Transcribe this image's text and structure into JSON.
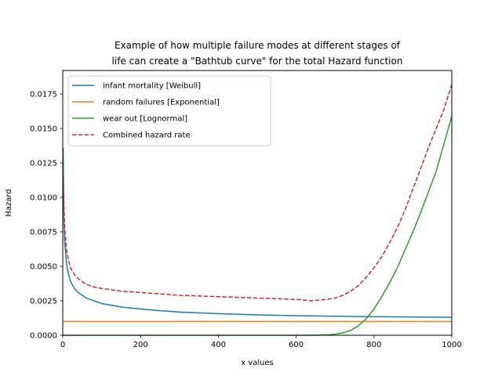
{
  "chart_data": {
    "type": "line",
    "title_lines": [
      "Example of how multiple failure modes at different stages of",
      "life can create a \"Bathtub curve\" for the total Hazard function"
    ],
    "xlabel": "x values",
    "ylabel": "Hazard",
    "xlim": [
      0,
      1000
    ],
    "ylim": [
      0,
      0.0192
    ],
    "x_ticks": [
      0,
      200,
      400,
      600,
      800,
      1000
    ],
    "x_tick_labels": [
      "0",
      "200",
      "400",
      "600",
      "800",
      "1000"
    ],
    "y_ticks": [
      0,
      0.0025,
      0.005,
      0.0075,
      0.01,
      0.0125,
      0.015,
      0.0175
    ],
    "y_tick_labels": [
      "0.0000",
      "0.0025",
      "0.0050",
      "0.0075",
      "0.0100",
      "0.0125",
      "0.0150",
      "0.0175"
    ],
    "grid": false,
    "legend_placement": "upper-left",
    "series": [
      {
        "name": "infant mortality [Weibull]",
        "color": "#1f77b4",
        "dash": "solid",
        "x": [
          1,
          3,
          5,
          10,
          15,
          20,
          30,
          40,
          50,
          60,
          80,
          100,
          150,
          200,
          250,
          300,
          400,
          500,
          600,
          700,
          800,
          900,
          1000
        ],
        "y": [
          0.0136,
          0.0083,
          0.0068,
          0.0051,
          0.0044,
          0.0039,
          0.0034,
          0.0031,
          0.0029,
          0.0027,
          0.0025,
          0.0023,
          0.00205,
          0.0019,
          0.00178,
          0.00168,
          0.00157,
          0.00148,
          0.00142,
          0.00138,
          0.00135,
          0.00133,
          0.0013
        ]
      },
      {
        "name": "random failures [Exponential]",
        "color": "#ff7f0e",
        "dash": "solid",
        "x": [
          0,
          1000
        ],
        "y": [
          0.001,
          0.001
        ]
      },
      {
        "name": "wear out [Lognormal]",
        "color": "#2ca02c",
        "dash": "solid",
        "x": [
          0,
          600,
          650,
          680,
          700,
          720,
          740,
          760,
          780,
          800,
          820,
          840,
          860,
          880,
          900,
          920,
          940,
          960,
          980,
          1000
        ],
        "y": [
          0,
          0,
          1e-05,
          3e-05,
          8e-05,
          0.00018,
          0.00035,
          0.0007,
          0.0012,
          0.0019,
          0.0028,
          0.0038,
          0.0049,
          0.0062,
          0.0075,
          0.0089,
          0.0104,
          0.0119,
          0.0139,
          0.0159
        ]
      },
      {
        "name": "Combined hazard rate",
        "color": "#d62728",
        "dash": "dashed",
        "x": [
          1,
          3,
          5,
          10,
          15,
          20,
          30,
          40,
          50,
          60,
          80,
          100,
          150,
          200,
          250,
          300,
          400,
          500,
          600,
          640,
          680,
          700,
          720,
          740,
          760,
          780,
          800,
          820,
          840,
          860,
          880,
          900,
          920,
          940,
          960,
          980,
          1000
        ],
        "y": [
          0.0112,
          0.0094,
          0.0078,
          0.0061,
          0.0054,
          0.0049,
          0.0044,
          0.0041,
          0.0039,
          0.0037,
          0.0035,
          0.0034,
          0.0032,
          0.0031,
          0.003,
          0.0029,
          0.0028,
          0.0027,
          0.0026,
          0.0025,
          0.0026,
          0.0027,
          0.0029,
          0.0032,
          0.0036,
          0.0042,
          0.0049,
          0.0057,
          0.0067,
          0.0078,
          0.0091,
          0.0106,
          0.0121,
          0.0136,
          0.015,
          0.0164,
          0.0182
        ]
      }
    ]
  }
}
